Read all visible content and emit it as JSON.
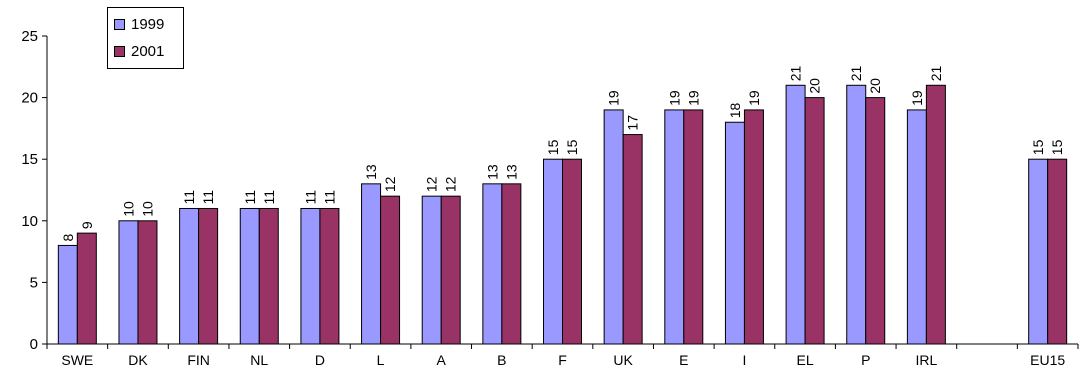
{
  "chart_data": {
    "type": "bar",
    "categories": [
      "SWE",
      "DK",
      "FIN",
      "NL",
      "D",
      "L",
      "A",
      "B",
      "F",
      "UK",
      "E",
      "I",
      "EL",
      "P",
      "IRL",
      "",
      "EU15"
    ],
    "series": [
      {
        "name": "1999",
        "color": "#9999ff",
        "values": [
          8,
          10,
          11,
          11,
          11,
          13,
          12,
          13,
          15,
          19,
          19,
          18,
          21,
          21,
          19,
          null,
          15
        ]
      },
      {
        "name": "2001",
        "color": "#993366",
        "values": [
          9,
          10,
          11,
          11,
          11,
          12,
          12,
          13,
          15,
          17,
          19,
          19,
          20,
          20,
          21,
          null,
          15
        ]
      }
    ],
    "ylim": [
      0,
      25
    ],
    "yticks": [
      0,
      5,
      10,
      15,
      20,
      25
    ],
    "grid": false,
    "legend_position": "top-left",
    "data_labels": "rotated-vertical"
  }
}
